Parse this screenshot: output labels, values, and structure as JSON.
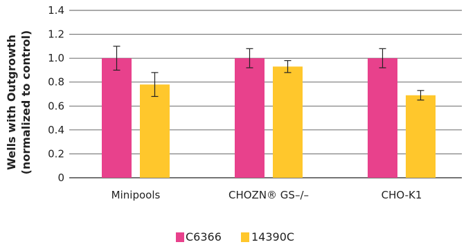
{
  "chart_data": {
    "type": "bar",
    "categories": [
      "Minipools",
      "CHOZN® GS–/–",
      "CHO-K1"
    ],
    "series": [
      {
        "name": "C6366",
        "color": "#e8418c",
        "values": [
          1.0,
          1.0,
          1.0
        ],
        "error": [
          0.1,
          0.08,
          0.08
        ]
      },
      {
        "name": "14390C",
        "color": "#ffc72c",
        "values": [
          0.78,
          0.93,
          0.69
        ],
        "error": [
          0.1,
          0.05,
          0.04
        ]
      }
    ],
    "ylabel_lines": [
      "Wells with Outgrowth",
      "(normalized to control)"
    ],
    "xlabel": "",
    "ylim": [
      0,
      1.4
    ],
    "yticks": [
      "0",
      "0.2",
      "0.4",
      "0.6",
      "0.8",
      "1.0",
      "1.2",
      "1.4"
    ],
    "grid": true,
    "legend_position": "bottom-center"
  }
}
